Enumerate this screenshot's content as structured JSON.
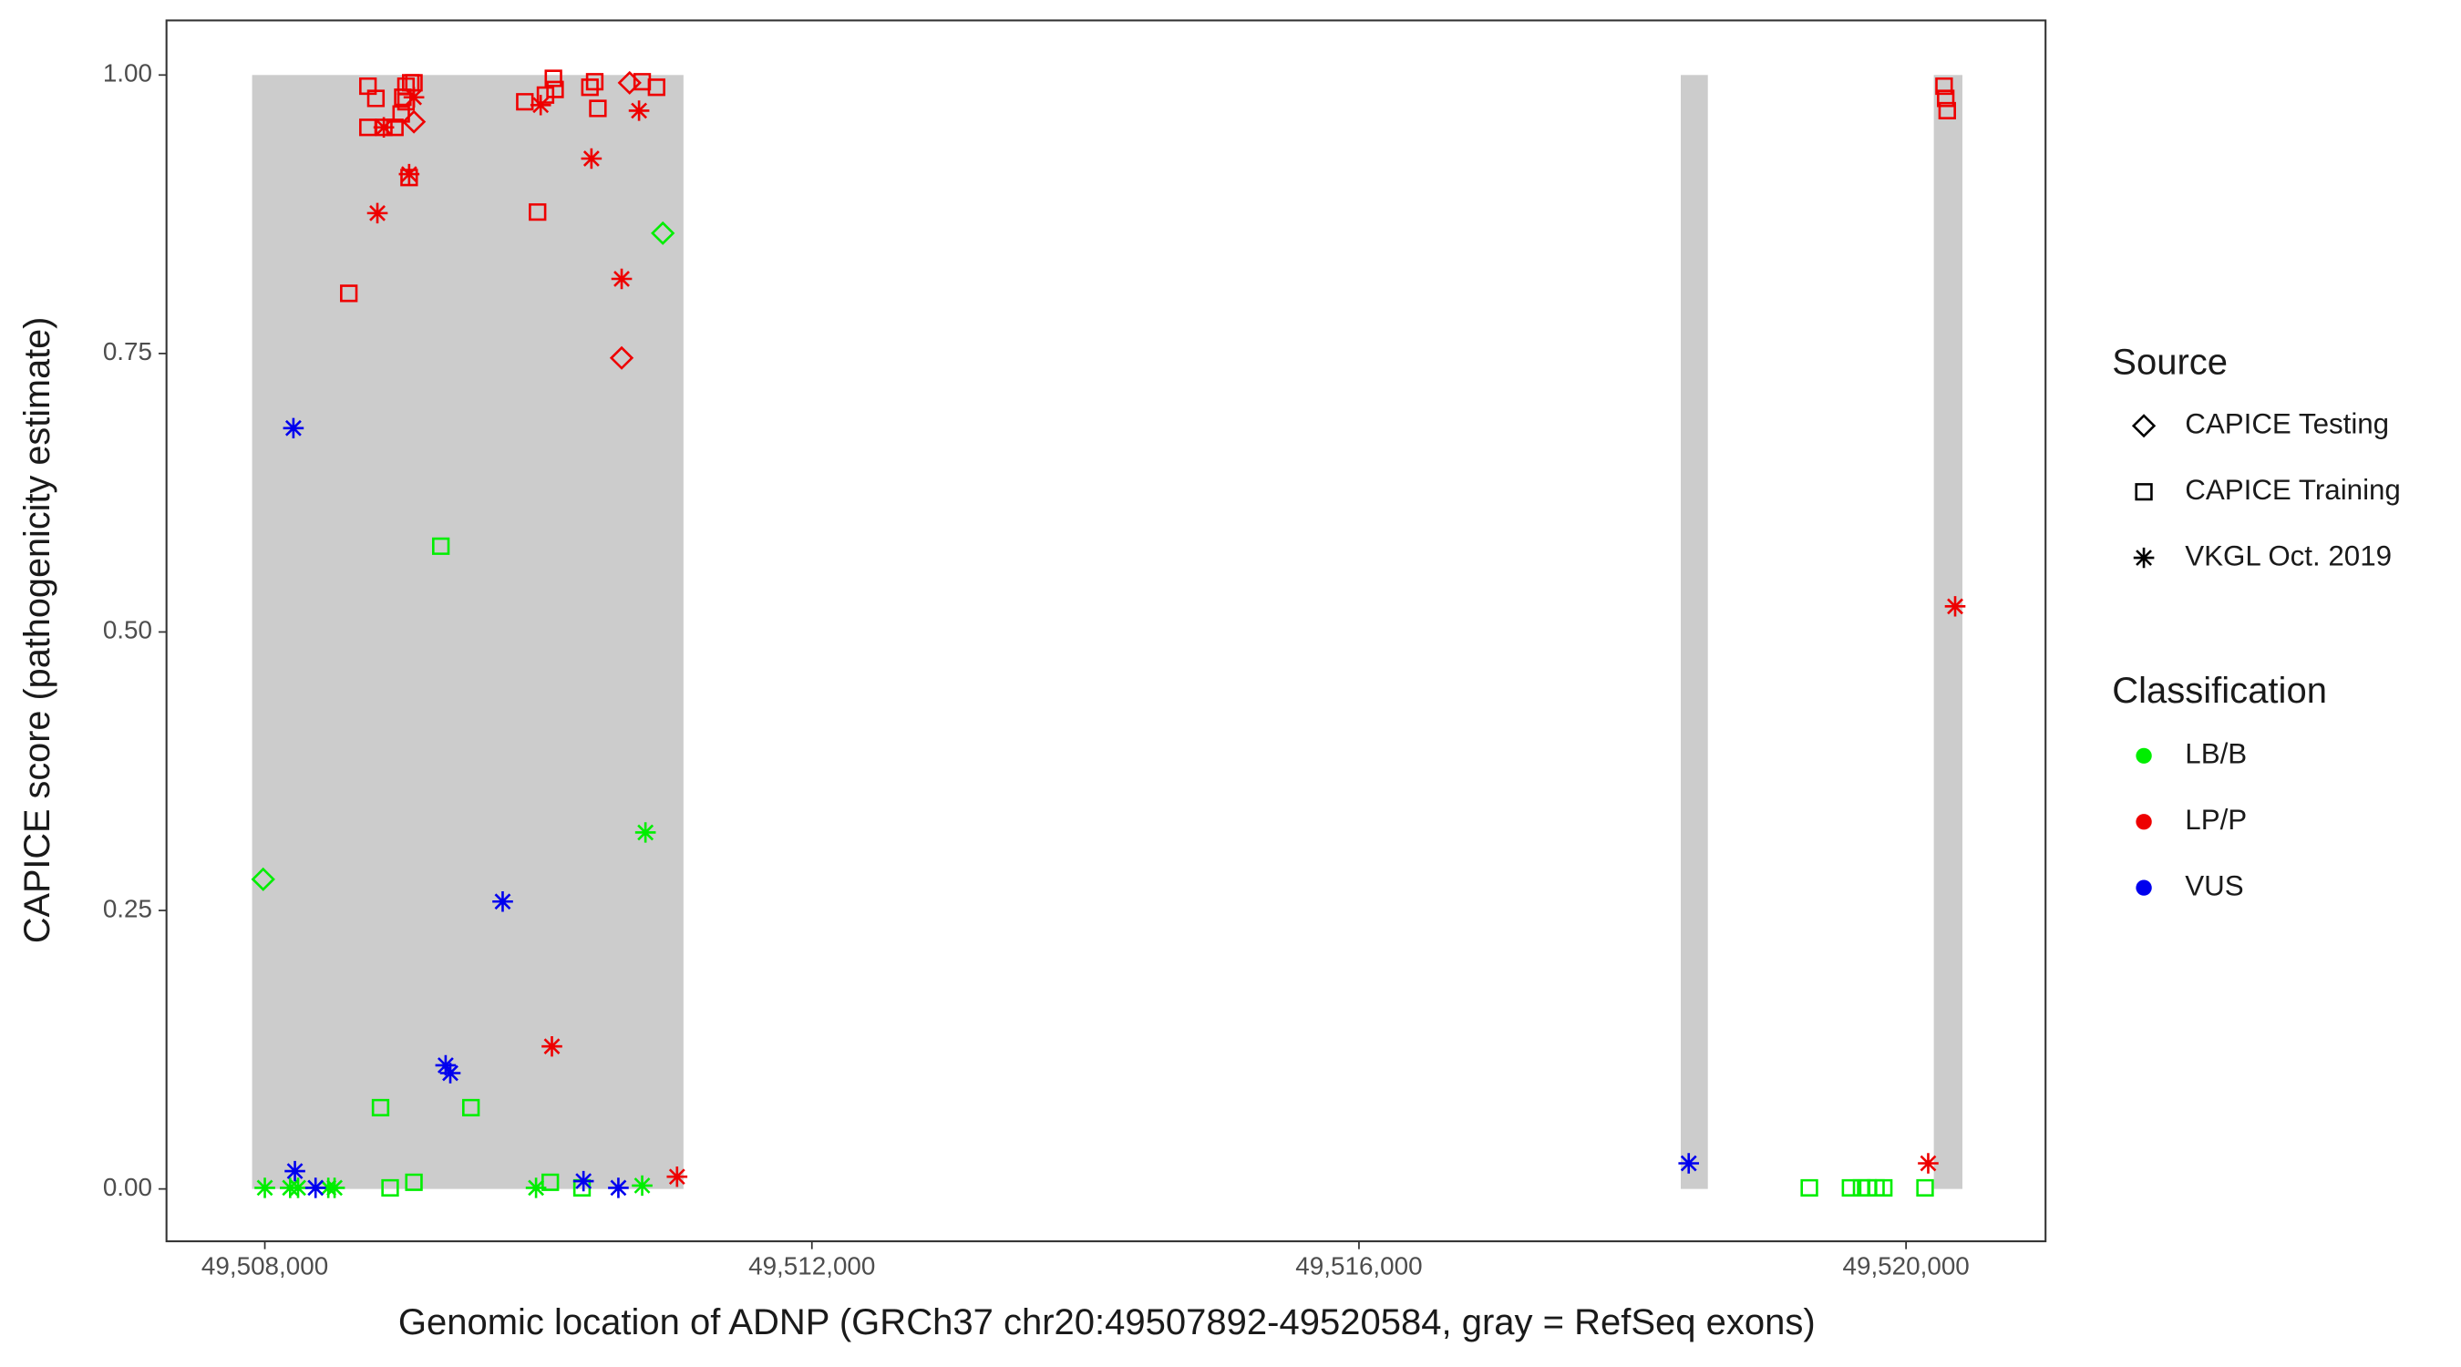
{
  "chart_data": {
    "type": "scatter",
    "xlabel": "Genomic location of ADNP (GRCh37 chr20:49507892-49520584, gray = RefSeq exons)",
    "ylabel": "CAPICE score (pathogenicity estimate)",
    "xlim": [
      49507281,
      49521020
    ],
    "ylim": [
      -0.047,
      1.049
    ],
    "xticks": [
      {
        "value": 49508000,
        "label": "49,508,000"
      },
      {
        "value": 49512000,
        "label": "49,512,000"
      },
      {
        "value": 49516000,
        "label": "49,516,000"
      },
      {
        "value": 49520000,
        "label": "49,520,000"
      }
    ],
    "yticks": [
      {
        "value": 0,
        "label": "0.00"
      },
      {
        "value": 0.25,
        "label": "0.25"
      },
      {
        "value": 0.5,
        "label": "0.50"
      },
      {
        "value": 0.75,
        "label": "0.75"
      },
      {
        "value": 1,
        "label": "1.00"
      }
    ],
    "exons": [
      [
        49507907,
        49511061
      ],
      [
        49518353,
        49518551
      ],
      [
        49520203,
        49520412
      ]
    ],
    "exon_color": "#cccccc",
    "legend": {
      "source_title": "Source",
      "sources": [
        {
          "name": "CAPICE Testing",
          "shape": "diamond"
        },
        {
          "name": "CAPICE Training",
          "shape": "square"
        },
        {
          "name": "VKGL Oct. 2019",
          "shape": "asterisk"
        }
      ],
      "classification_title": "Classification",
      "classifications": [
        {
          "name": "LB/B",
          "color": "#00ee00"
        },
        {
          "name": "LP/P",
          "color": "#ee0000"
        },
        {
          "name": "VUS",
          "color": "#0000ee"
        }
      ]
    },
    "series": [
      {
        "source": 1,
        "classification": 1,
        "x": [
          49508754,
          49508812,
          49508754,
          49508870,
          49508951,
          49508997,
          49509009,
          49509032,
          49509067,
          49509090,
          49509032,
          49509055,
          49508614,
          49509901,
          49510052,
          49510110,
          49510122,
          49510377,
          49510412,
          49510435,
          49509994,
          49510759,
          49510864,
          49520278,
          49520290,
          49520301
        ],
        "y": [
          0.99,
          0.979,
          0.953,
          0.953,
          0.953,
          0.965,
          0.98,
          0.99,
          0.993,
          0.993,
          0.976,
          0.908,
          0.804,
          0.976,
          0.982,
          0.997,
          0.987,
          0.989,
          0.994,
          0.97,
          0.877,
          0.994,
          0.989,
          0.99,
          0.979,
          0.968
        ]
      },
      {
        "source": 2,
        "classification": 1,
        "x": [
          49508870,
          49509055,
          49509090,
          49508823,
          49510017,
          49510388,
          49510609,
          49510736,
          49510099,
          49511014,
          49520162,
          49520359
        ],
        "y": [
          0.953,
          0.911,
          0.98,
          0.876,
          0.973,
          0.925,
          0.817,
          0.968,
          0.128,
          0.011,
          0.023,
          0.523
        ]
      },
      {
        "source": 0,
        "classification": 1,
        "x": [
          49510667,
          49509090,
          49510609
        ],
        "y": [
          0.993,
          0.958,
          0.746
        ]
      },
      {
        "source": 0,
        "classification": 0,
        "x": [
          49510910,
          49507988
        ],
        "y": [
          0.858,
          0.278
        ]
      },
      {
        "source": 1,
        "classification": 0,
        "x": [
          49509287,
          49508846,
          49509507,
          49508916,
          49509090,
          49510087,
          49510319,
          49519293,
          49519594,
          49519675,
          49519721,
          49519780,
          49519837,
          49520139
        ],
        "y": [
          0.577,
          0.073,
          0.073,
          0.001,
          0.006,
          0.006,
          0.001,
          0.001,
          0.001,
          0.001,
          0.001,
          0.001,
          0.001,
          0.001
        ]
      },
      {
        "source": 2,
        "classification": 0,
        "x": [
          49508000,
          49508185,
          49508243,
          49508464,
          49508510,
          49509983,
          49510759,
          49510783
        ],
        "y": [
          0.001,
          0.001,
          0.001,
          0.001,
          0.001,
          0.001,
          0.003,
          0.32
        ]
      },
      {
        "source": 2,
        "classification": 2,
        "x": [
          49508209,
          49508220,
          49508371,
          49509739,
          49509322,
          49509356,
          49510330,
          49510585,
          49518411
        ],
        "y": [
          0.683,
          0.016,
          0.001,
          0.258,
          0.111,
          0.104,
          0.007,
          0.001,
          0.023
        ]
      }
    ]
  }
}
